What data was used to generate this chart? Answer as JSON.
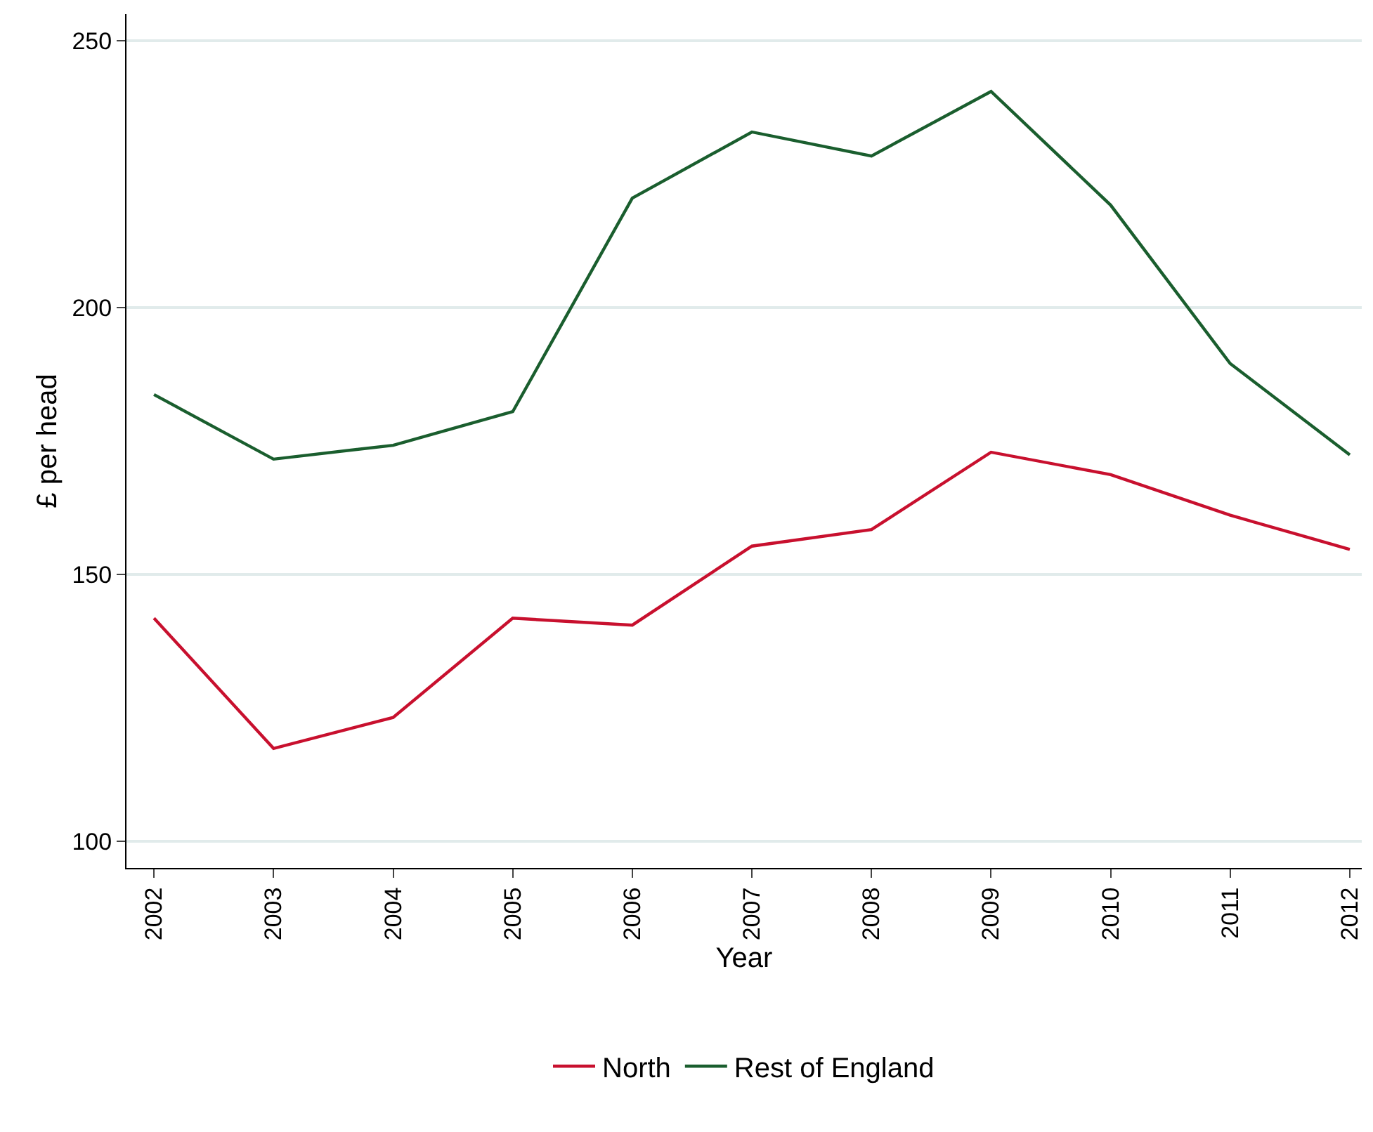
{
  "chart_data": {
    "type": "line",
    "xlabel": "Year",
    "ylabel": "£ per head",
    "x": [
      2002,
      2003,
      2004,
      2005,
      2006,
      2007,
      2008,
      2009,
      2010,
      2011,
      2012
    ],
    "series": [
      {
        "name": "North",
        "color": "#c8102e",
        "values": [
          141.8,
          117.4,
          123.2,
          141.8,
          140.5,
          155.3,
          158.4,
          172.9,
          168.7,
          161.1,
          154.7
        ]
      },
      {
        "name": "Rest of England",
        "color": "#1a5e2e",
        "values": [
          183.7,
          171.6,
          174.2,
          180.5,
          220.5,
          232.9,
          228.4,
          240.5,
          219.2,
          189.5,
          172.4
        ]
      }
    ],
    "xlim": [
      2001.77,
      2012.1
    ],
    "xticks": [
      2002,
      2003,
      2004,
      2005,
      2006,
      2007,
      2008,
      2009,
      2010,
      2011,
      2012
    ],
    "ylim": [
      95,
      255
    ],
    "yticks": [
      100,
      150,
      200,
      250
    ],
    "grid": "y",
    "legend": "bottom",
    "marker": "none",
    "line_style": "solid"
  }
}
